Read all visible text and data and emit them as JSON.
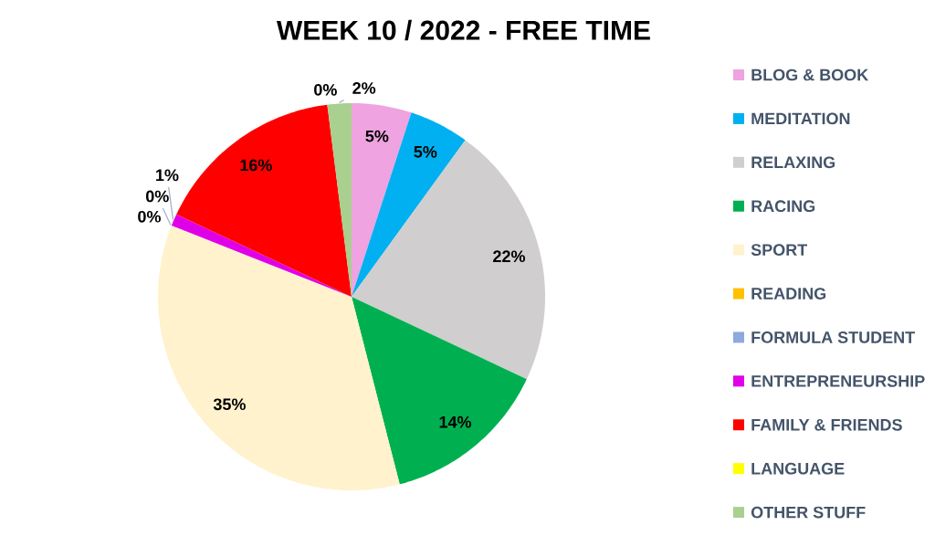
{
  "chart_data": {
    "type": "pie",
    "title": "WEEK 10 / 2022 - FREE TIME",
    "categories": [
      "BLOG & BOOK",
      "MEDITATION",
      "RELAXING",
      "RACING",
      "SPORT",
      "READING",
      "FORMULA STUDENT",
      "ENTREPRENEURSHIP",
      "FAMILY & FRIENDS",
      "LANGUAGE",
      "OTHER STUFF"
    ],
    "values": [
      5,
      5,
      22,
      14,
      35,
      0,
      0,
      1,
      16,
      0,
      2
    ],
    "colors": [
      "#efa3e0",
      "#00b0f0",
      "#d0cece",
      "#00b050",
      "#fff2cc",
      "#ffc000",
      "#8ea9db",
      "#e000e8",
      "#ff0000",
      "#ffff00",
      "#a9d08e"
    ],
    "value_labels": [
      "5%",
      "5%",
      "22%",
      "14%",
      "35%",
      "0%",
      "0%",
      "1%",
      "16%",
      "0%",
      "2%"
    ],
    "legend": "right"
  }
}
